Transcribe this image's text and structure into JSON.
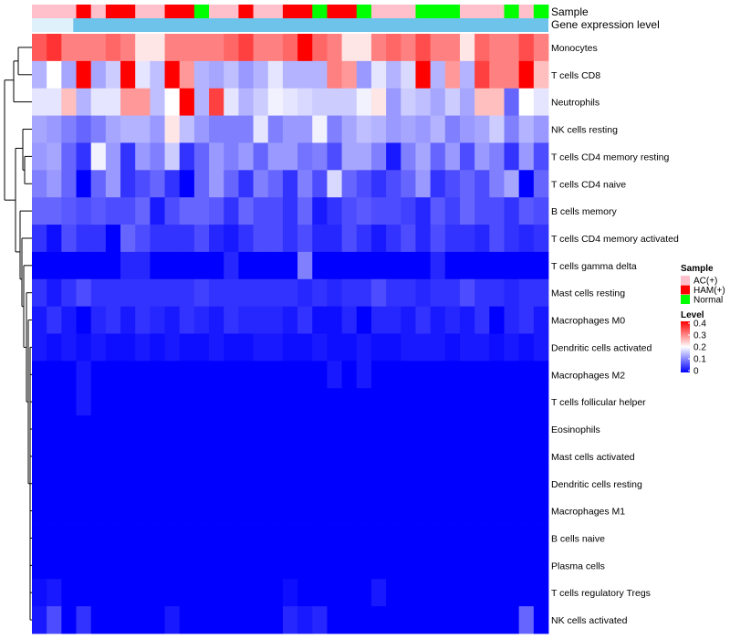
{
  "chart_data": {
    "type": "heatmap",
    "title": "",
    "annotation_labels": [
      "Sample",
      "Gene expression level"
    ],
    "rows": [
      "Monocytes",
      "T cells CD8",
      "Neutrophils",
      "NK cells resting",
      "T cells CD4 memory resting",
      "T cells CD4 naive",
      "B cells memory",
      "T cells CD4 memory activated",
      "T cells gamma delta",
      "Mast cells resting",
      "Macrophages M0",
      "Dendritic cells activated",
      "Macrophages M2",
      "T cells follicular helper",
      "Eosinophils",
      "Mast cells activated",
      "Dendritic cells resting",
      "Macrophages M1",
      "B cells naive",
      "Plasma cells",
      "T cells regulatory  Tregs",
      "NK cells activated"
    ],
    "sample_groups": [
      "AC(+)",
      "AC(+)",
      "AC(+)",
      "HAM(+)",
      "AC(+)",
      "HAM(+)",
      "HAM(+)",
      "AC(+)",
      "AC(+)",
      "HAM(+)",
      "HAM(+)",
      "Normal",
      "AC(+)",
      "AC(+)",
      "HAM(+)",
      "AC(+)",
      "AC(+)",
      "HAM(+)",
      "HAM(+)",
      "Normal",
      "HAM(+)",
      "HAM(+)",
      "Normal",
      "AC(+)",
      "AC(+)",
      "AC(+)",
      "Normal",
      "Normal",
      "Normal",
      "AC(+)",
      "AC(+)",
      "AC(+)",
      "Normal",
      "AC(+)",
      "Normal"
    ],
    "sample_group_colors": {
      "AC(+)": "#ffc0cb",
      "HAM(+)": "#ff0000",
      "Normal": "#00ff00"
    },
    "gene_expression_color": "#6ec3ea",
    "gene_expression_fraction": 0.08,
    "legend_sample": {
      "title": "Sample",
      "entries": [
        {
          "label": "AC(+)",
          "color": "#ffc0cb"
        },
        {
          "label": "HAM(+)",
          "color": "#ff0000"
        },
        {
          "label": "Normal",
          "color": "#00ff00"
        }
      ]
    },
    "legend_level": {
      "title": "Level",
      "range": [
        0,
        0.4
      ],
      "ticks": [
        "0.4",
        "0.3",
        "0.2",
        "0.1",
        "0"
      ],
      "colors": [
        "#0000ff",
        "#ffffff",
        "#ff0000"
      ]
    },
    "values": [
      [
        0.33,
        0.36,
        0.3,
        0.3,
        0.3,
        0.32,
        0.3,
        0.22,
        0.22,
        0.3,
        0.3,
        0.3,
        0.3,
        0.32,
        0.35,
        0.3,
        0.3,
        0.32,
        0.4,
        0.32,
        0.3,
        0.22,
        0.22,
        0.3,
        0.32,
        0.3,
        0.34,
        0.3,
        0.3,
        0.22,
        0.32,
        0.3,
        0.3,
        0.34,
        0.3
      ],
      [
        0.14,
        0.2,
        0.13,
        0.4,
        0.13,
        0.16,
        0.4,
        0.18,
        0.15,
        0.4,
        0.28,
        0.14,
        0.13,
        0.15,
        0.12,
        0.14,
        0.18,
        0.14,
        0.14,
        0.14,
        0.3,
        0.28,
        0.12,
        0.18,
        0.14,
        0.17,
        0.4,
        0.14,
        0.28,
        0.14,
        0.35,
        0.3,
        0.3,
        0.4,
        0.25
      ],
      [
        0.18,
        0.18,
        0.25,
        0.14,
        0.18,
        0.18,
        0.28,
        0.28,
        0.15,
        0.2,
        0.4,
        0.14,
        0.35,
        0.18,
        0.14,
        0.16,
        0.19,
        0.18,
        0.17,
        0.16,
        0.16,
        0.16,
        0.19,
        0.22,
        0.12,
        0.16,
        0.15,
        0.13,
        0.16,
        0.13,
        0.25,
        0.25,
        0.08,
        0.2,
        0.18
      ],
      [
        0.13,
        0.12,
        0.1,
        0.08,
        0.1,
        0.13,
        0.14,
        0.14,
        0.12,
        0.22,
        0.15,
        0.12,
        0.1,
        0.1,
        0.1,
        0.18,
        0.1,
        0.12,
        0.12,
        0.19,
        0.1,
        0.13,
        0.15,
        0.14,
        0.12,
        0.13,
        0.12,
        0.14,
        0.1,
        0.12,
        0.13,
        0.16,
        0.1,
        0.14,
        0.12
      ],
      [
        0.12,
        0.13,
        0.08,
        0.04,
        0.19,
        0.12,
        0.04,
        0.12,
        0.1,
        0.16,
        0.04,
        0.08,
        0.12,
        0.1,
        0.12,
        0.08,
        0.12,
        0.12,
        0.09,
        0.1,
        0.06,
        0.13,
        0.13,
        0.1,
        0.02,
        0.1,
        0.13,
        0.08,
        0.12,
        0.06,
        0.12,
        0.1,
        0.04,
        0.12,
        0.06
      ],
      [
        0.1,
        0.12,
        0.08,
        0.0,
        0.08,
        0.12,
        0.04,
        0.06,
        0.08,
        0.04,
        0.0,
        0.08,
        0.12,
        0.08,
        0.04,
        0.1,
        0.08,
        0.04,
        0.1,
        0.06,
        0.17,
        0.08,
        0.06,
        0.04,
        0.06,
        0.08,
        0.12,
        0.04,
        0.06,
        0.08,
        0.06,
        0.1,
        0.13,
        0.0,
        0.08
      ],
      [
        0.08,
        0.08,
        0.07,
        0.06,
        0.07,
        0.06,
        0.06,
        0.08,
        0.02,
        0.06,
        0.08,
        0.08,
        0.07,
        0.04,
        0.08,
        0.06,
        0.06,
        0.04,
        0.08,
        0.02,
        0.04,
        0.06,
        0.07,
        0.06,
        0.06,
        0.05,
        0.03,
        0.07,
        0.05,
        0.08,
        0.06,
        0.06,
        0.04,
        0.07,
        0.06
      ],
      [
        0.04,
        0.01,
        0.06,
        0.04,
        0.04,
        0.0,
        0.08,
        0.06,
        0.04,
        0.04,
        0.04,
        0.06,
        0.03,
        0.02,
        0.04,
        0.06,
        0.06,
        0.04,
        0.06,
        0.03,
        0.03,
        0.06,
        0.04,
        0.02,
        0.04,
        0.06,
        0.03,
        0.06,
        0.04,
        0.04,
        0.03,
        0.06,
        0.04,
        0.03,
        0.04
      ],
      [
        0.0,
        0.0,
        0.0,
        0.0,
        0.0,
        0.0,
        0.03,
        0.03,
        0.0,
        0.0,
        0.0,
        0.0,
        0.0,
        0.03,
        0.0,
        0.0,
        0.0,
        0.0,
        0.1,
        0.0,
        0.0,
        0.0,
        0.0,
        0.0,
        0.0,
        0.0,
        0.0,
        0.03,
        0.0,
        0.0,
        0.0,
        0.0,
        0.0,
        0.0,
        0.0
      ],
      [
        0.04,
        0.02,
        0.04,
        0.06,
        0.04,
        0.04,
        0.04,
        0.04,
        0.04,
        0.04,
        0.04,
        0.05,
        0.04,
        0.04,
        0.04,
        0.04,
        0.04,
        0.04,
        0.03,
        0.04,
        0.03,
        0.04,
        0.04,
        0.06,
        0.04,
        0.04,
        0.03,
        0.04,
        0.04,
        0.06,
        0.04,
        0.04,
        0.03,
        0.04,
        0.04
      ],
      [
        0.02,
        0.04,
        0.02,
        0.0,
        0.03,
        0.04,
        0.02,
        0.04,
        0.03,
        0.02,
        0.04,
        0.03,
        0.02,
        0.04,
        0.03,
        0.03,
        0.03,
        0.02,
        0.04,
        0.01,
        0.01,
        0.03,
        0.0,
        0.03,
        0.03,
        0.02,
        0.04,
        0.02,
        0.03,
        0.02,
        0.04,
        0.0,
        0.03,
        0.04,
        0.02
      ],
      [
        0.02,
        0.01,
        0.02,
        0.01,
        0.02,
        0.01,
        0.01,
        0.02,
        0.01,
        0.02,
        0.01,
        0.01,
        0.02,
        0.01,
        0.01,
        0.02,
        0.02,
        0.01,
        0.01,
        0.02,
        0.01,
        0.01,
        0.02,
        0.01,
        0.01,
        0.02,
        0.02,
        0.02,
        0.01,
        0.02,
        0.02,
        0.01,
        0.02,
        0.01,
        0.02
      ],
      [
        0.0,
        0.0,
        0.0,
        0.02,
        0.0,
        0.0,
        0.0,
        0.0,
        0.0,
        0.0,
        0.0,
        0.0,
        0.0,
        0.0,
        0.0,
        0.0,
        0.0,
        0.0,
        0.0,
        0.0,
        0.02,
        0.0,
        0.02,
        0.0,
        0.0,
        0.0,
        0.0,
        0.0,
        0.0,
        0.0,
        0.0,
        0.0,
        0.0,
        0.0,
        0.0
      ],
      [
        0.0,
        0.0,
        0.0,
        0.02,
        0.0,
        0.0,
        0.0,
        0.0,
        0.0,
        0.0,
        0.0,
        0.0,
        0.0,
        0.0,
        0.0,
        0.0,
        0.0,
        0.0,
        0.0,
        0.0,
        0.0,
        0.0,
        0.0,
        0.0,
        0.0,
        0.0,
        0.0,
        0.0,
        0.0,
        0.0,
        0.0,
        0.0,
        0.0,
        0.0,
        0.0
      ],
      [
        0.0,
        0.0,
        0.0,
        0.0,
        0.0,
        0.0,
        0.0,
        0.0,
        0.0,
        0.0,
        0.0,
        0.0,
        0.0,
        0.0,
        0.0,
        0.0,
        0.0,
        0.0,
        0.0,
        0.0,
        0.0,
        0.0,
        0.0,
        0.0,
        0.0,
        0.0,
        0.0,
        0.0,
        0.0,
        0.0,
        0.0,
        0.0,
        0.0,
        0.0,
        0.0
      ],
      [
        0.0,
        0.0,
        0.0,
        0.0,
        0.0,
        0.0,
        0.0,
        0.0,
        0.0,
        0.0,
        0.0,
        0.0,
        0.0,
        0.0,
        0.0,
        0.0,
        0.0,
        0.0,
        0.0,
        0.0,
        0.0,
        0.0,
        0.0,
        0.0,
        0.0,
        0.0,
        0.0,
        0.0,
        0.0,
        0.0,
        0.0,
        0.0,
        0.0,
        0.0,
        0.0
      ],
      [
        0.0,
        0.0,
        0.0,
        0.0,
        0.0,
        0.0,
        0.0,
        0.0,
        0.0,
        0.0,
        0.0,
        0.0,
        0.0,
        0.0,
        0.0,
        0.0,
        0.0,
        0.0,
        0.0,
        0.0,
        0.0,
        0.0,
        0.0,
        0.0,
        0.0,
        0.0,
        0.0,
        0.0,
        0.0,
        0.0,
        0.0,
        0.0,
        0.0,
        0.0,
        0.0
      ],
      [
        0.0,
        0.0,
        0.0,
        0.0,
        0.0,
        0.0,
        0.0,
        0.0,
        0.0,
        0.0,
        0.0,
        0.0,
        0.0,
        0.0,
        0.0,
        0.0,
        0.0,
        0.0,
        0.0,
        0.0,
        0.0,
        0.0,
        0.0,
        0.0,
        0.0,
        0.0,
        0.0,
        0.0,
        0.0,
        0.0,
        0.0,
        0.0,
        0.0,
        0.0,
        0.0
      ],
      [
        0.0,
        0.0,
        0.0,
        0.0,
        0.0,
        0.0,
        0.0,
        0.0,
        0.0,
        0.0,
        0.0,
        0.0,
        0.0,
        0.0,
        0.0,
        0.0,
        0.0,
        0.0,
        0.0,
        0.0,
        0.0,
        0.0,
        0.0,
        0.0,
        0.0,
        0.0,
        0.0,
        0.0,
        0.0,
        0.0,
        0.0,
        0.0,
        0.0,
        0.0,
        0.0
      ],
      [
        0.0,
        0.0,
        0.0,
        0.0,
        0.0,
        0.0,
        0.0,
        0.0,
        0.0,
        0.0,
        0.0,
        0.0,
        0.0,
        0.0,
        0.0,
        0.0,
        0.0,
        0.0,
        0.0,
        0.0,
        0.0,
        0.0,
        0.0,
        0.0,
        0.0,
        0.0,
        0.0,
        0.0,
        0.0,
        0.0,
        0.0,
        0.0,
        0.0,
        0.0,
        0.0
      ],
      [
        0.01,
        0.02,
        0.0,
        0.0,
        0.0,
        0.0,
        0.0,
        0.0,
        0.0,
        0.0,
        0.0,
        0.0,
        0.0,
        0.0,
        0.0,
        0.0,
        0.0,
        0.01,
        0.0,
        0.0,
        0.0,
        0.0,
        0.0,
        0.02,
        0.0,
        0.0,
        0.0,
        0.0,
        0.0,
        0.0,
        0.0,
        0.0,
        0.0,
        0.0,
        0.0
      ],
      [
        0.02,
        0.06,
        0.0,
        0.04,
        0.0,
        0.0,
        0.0,
        0.0,
        0.0,
        0.02,
        0.0,
        0.0,
        0.0,
        0.0,
        0.0,
        0.0,
        0.0,
        0.03,
        0.02,
        0.03,
        0.0,
        0.0,
        0.0,
        0.0,
        0.0,
        0.0,
        0.0,
        0.0,
        0.0,
        0.0,
        0.0,
        0.0,
        0.0,
        0.08,
        0.0
      ]
    ]
  }
}
